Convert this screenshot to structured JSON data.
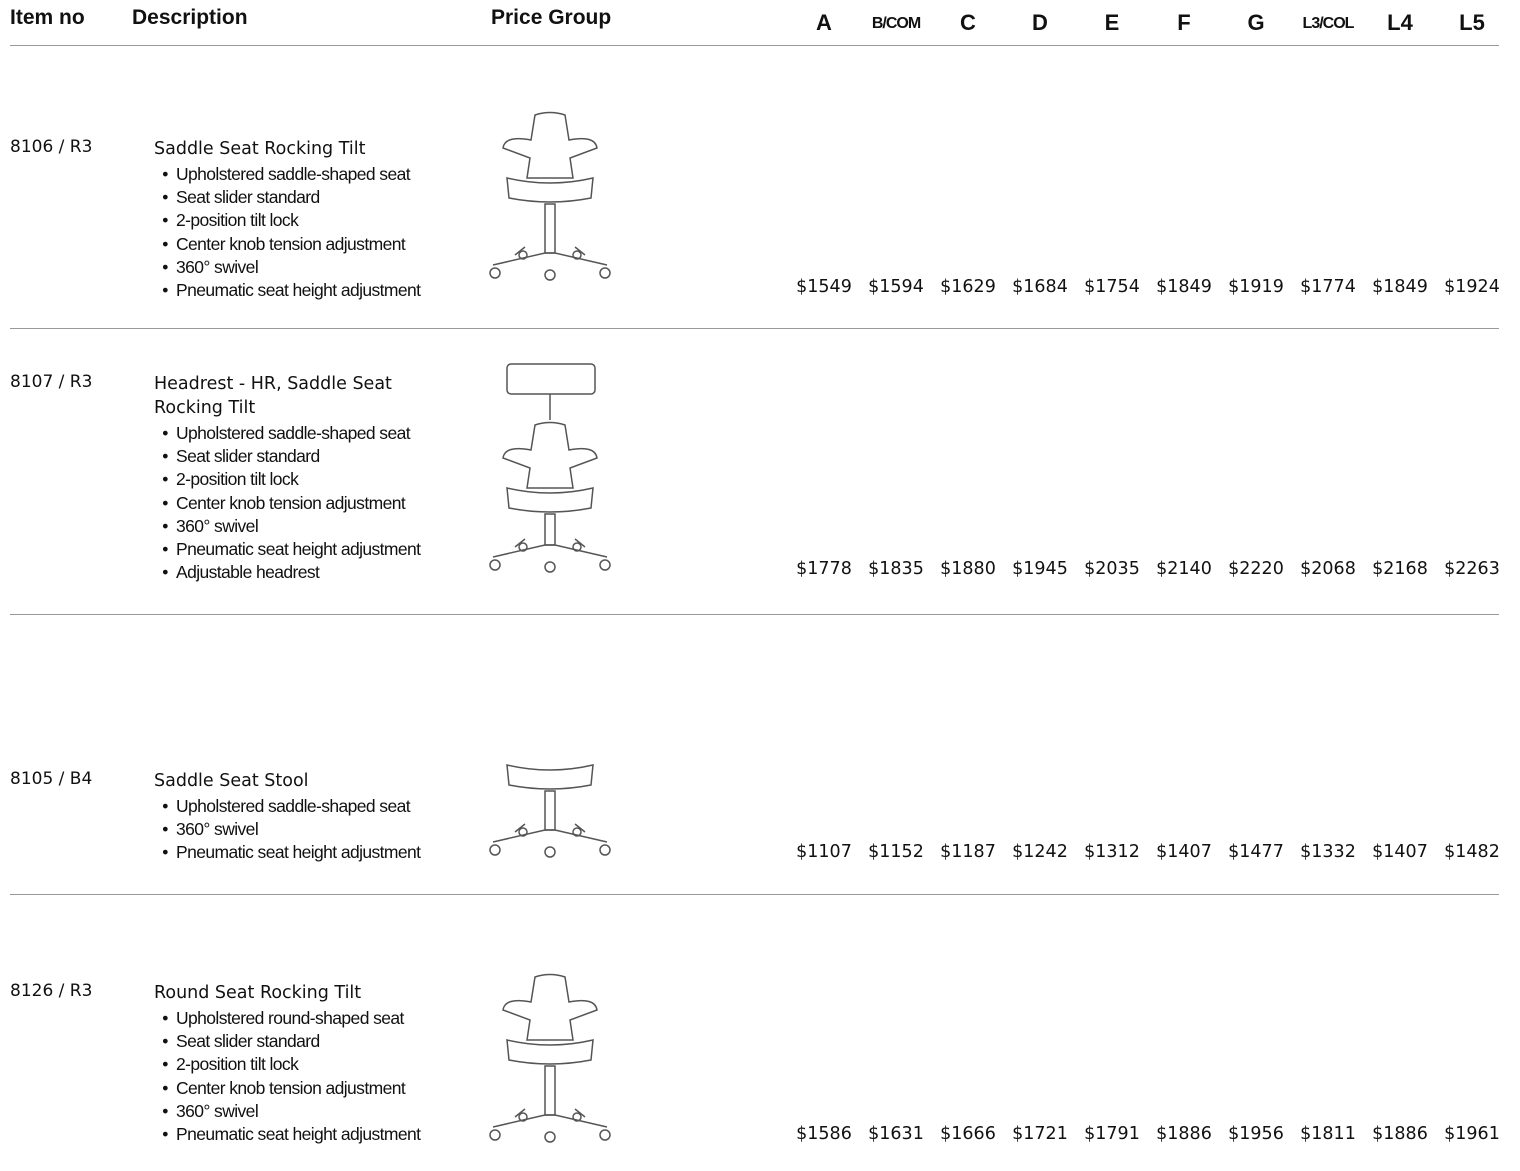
{
  "header": {
    "item_no": "Item no",
    "description": "Description",
    "price_group": "Price Group",
    "price_columns": [
      "A",
      "B/COM",
      "C",
      "D",
      "E",
      "F",
      "G",
      "L3/COL",
      "L4",
      "L5"
    ]
  },
  "rows": [
    {
      "item_no": "8106 / R3",
      "title": "Saddle Seat Rocking Tilt",
      "features": [
        "Upholstered saddle-shaped seat",
        "Seat slider standard",
        "2-position tilt lock",
        "Center knob tension adjustment",
        "360° swivel",
        "Pneumatic seat height adjustment"
      ],
      "prices": [
        "$1549",
        "$1594",
        "$1629",
        "$1684",
        "$1754",
        "$1849",
        "$1919",
        "$1774",
        "$1849",
        "$1924"
      ]
    },
    {
      "item_no": "8107 / R3",
      "title": "Headrest - HR, Saddle Seat Rocking Tilt",
      "features": [
        "Upholstered saddle-shaped seat",
        "Seat slider standard",
        "2-position tilt lock",
        "Center knob tension adjustment",
        "360° swivel",
        "Pneumatic seat height adjustment",
        "Adjustable headrest"
      ],
      "prices": [
        "$1778",
        "$1835",
        "$1880",
        "$1945",
        "$2035",
        "$2140",
        "$2220",
        "$2068",
        "$2168",
        "$2263"
      ]
    },
    {
      "item_no": "8105 / B4",
      "title": "Saddle Seat Stool",
      "features": [
        "Upholstered saddle-shaped seat",
        "360° swivel",
        "Pneumatic seat height adjustment"
      ],
      "prices": [
        "$1107",
        "$1152",
        "$1187",
        "$1242",
        "$1312",
        "$1407",
        "$1477",
        "$1332",
        "$1407",
        "$1482"
      ]
    },
    {
      "item_no": "8126 / R3",
      "title": "Round Seat Rocking Tilt",
      "features": [
        "Upholstered round-shaped seat",
        "Seat slider standard",
        "2-position tilt lock",
        "Center knob tension adjustment",
        "360° swivel",
        "Pneumatic seat height adjustment"
      ],
      "prices": [
        "$1586",
        "$1631",
        "$1666",
        "$1721",
        "$1791",
        "$1886",
        "$1956",
        "$1811",
        "$1886",
        "$1961"
      ]
    }
  ]
}
